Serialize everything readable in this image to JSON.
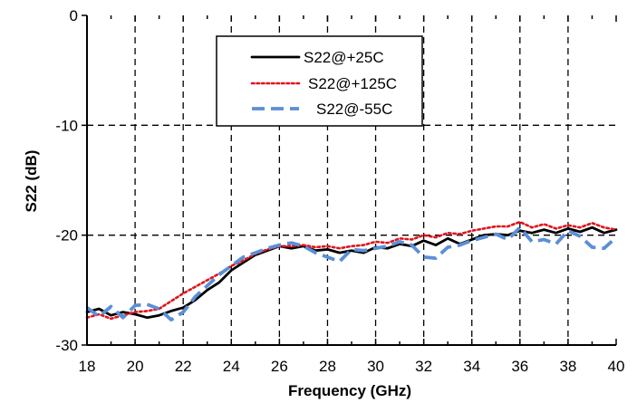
{
  "chart_data": {
    "type": "line",
    "xlabel": "Frequency (GHz)",
    "ylabel": "S22 (dB)",
    "xlim": [
      18,
      40
    ],
    "ylim": [
      -30,
      0
    ],
    "xticks": [
      18,
      20,
      22,
      24,
      26,
      28,
      30,
      32,
      34,
      36,
      38,
      40
    ],
    "yticks": [
      0,
      -10,
      -20,
      -30
    ],
    "grid": "dashed at x ticks and y = -10, -20",
    "legend_position": "top-center",
    "series": [
      {
        "name": "S22@+25C",
        "color": "#000000",
        "style": "solid",
        "x": [
          18,
          18.5,
          19,
          19.5,
          20,
          20.5,
          21,
          21.5,
          22,
          22.5,
          23,
          23.5,
          24,
          24.5,
          25,
          25.5,
          26,
          26.5,
          27,
          27.5,
          28,
          28.5,
          29,
          29.5,
          30,
          30.5,
          31,
          31.5,
          32,
          32.5,
          33,
          33.5,
          34,
          34.5,
          35,
          35.5,
          36,
          36.5,
          37,
          37.5,
          38,
          38.5,
          39,
          39.5,
          40
        ],
        "values": [
          -27.0,
          -26.7,
          -27.3,
          -27.0,
          -27.2,
          -27.5,
          -27.3,
          -26.9,
          -26.6,
          -25.9,
          -25.0,
          -24.3,
          -23.2,
          -22.5,
          -21.8,
          -21.4,
          -21.0,
          -21.2,
          -21.0,
          -21.4,
          -21.3,
          -21.6,
          -21.4,
          -21.6,
          -21.1,
          -21.2,
          -20.8,
          -21.0,
          -20.5,
          -20.9,
          -20.3,
          -20.8,
          -20.4,
          -20.0,
          -19.9,
          -20.0,
          -19.6,
          -19.8,
          -19.5,
          -19.8,
          -19.4,
          -19.7,
          -19.3,
          -19.8,
          -19.5
        ]
      },
      {
        "name": "S22@+125C",
        "color": "#e0141c",
        "style": "dotted",
        "x": [
          18,
          18.5,
          19,
          19.5,
          20,
          20.5,
          21,
          21.5,
          22,
          22.5,
          23,
          23.5,
          24,
          24.5,
          25,
          25.5,
          26,
          26.5,
          27,
          27.5,
          28,
          28.5,
          29,
          29.5,
          30,
          30.5,
          31,
          31.5,
          32,
          32.5,
          33,
          33.5,
          34,
          34.5,
          35,
          35.5,
          36,
          36.5,
          37,
          37.5,
          38,
          38.5,
          39,
          39.5,
          40
        ],
        "values": [
          -27.5,
          -27.2,
          -27.6,
          -27.3,
          -27.0,
          -26.9,
          -26.7,
          -26.0,
          -25.3,
          -24.7,
          -24.1,
          -23.5,
          -22.8,
          -22.3,
          -21.7,
          -21.3,
          -21.0,
          -21.0,
          -20.9,
          -21.1,
          -21.0,
          -21.2,
          -21.0,
          -20.9,
          -20.6,
          -20.7,
          -20.3,
          -20.4,
          -20.0,
          -20.2,
          -19.8,
          -19.9,
          -19.6,
          -19.4,
          -19.2,
          -19.2,
          -18.8,
          -19.3,
          -19.0,
          -19.4,
          -19.1,
          -19.3,
          -18.9,
          -19.3,
          -19.5
        ]
      },
      {
        "name": "S22@-55C",
        "color": "#5b8fd6",
        "style": "dashed",
        "x": [
          18,
          18.5,
          19,
          19.5,
          20,
          20.5,
          21,
          21.5,
          22,
          22.5,
          23,
          23.5,
          24,
          24.5,
          25,
          25.5,
          26,
          26.5,
          27,
          27.5,
          28,
          28.5,
          29,
          29.5,
          30,
          30.5,
          31,
          31.5,
          32,
          32.5,
          33,
          33.5,
          34,
          34.5,
          35,
          35.5,
          36,
          36.5,
          37,
          37.5,
          38,
          38.5,
          39,
          39.5,
          40
        ],
        "values": [
          -26.6,
          -27.4,
          -26.5,
          -27.5,
          -26.4,
          -26.3,
          -26.7,
          -27.7,
          -27.0,
          -25.6,
          -24.6,
          -23.6,
          -22.8,
          -22.0,
          -21.6,
          -21.2,
          -20.9,
          -20.7,
          -21.0,
          -21.6,
          -22.0,
          -22.4,
          -21.3,
          -21.4,
          -21.2,
          -21.0,
          -20.6,
          -20.9,
          -22.0,
          -22.1,
          -21.1,
          -20.9,
          -20.5,
          -20.2,
          -19.9,
          -20.4,
          -19.3,
          -20.6,
          -20.4,
          -20.8,
          -19.6,
          -20.1,
          -21.1,
          -21.2,
          -20.2
        ]
      }
    ]
  }
}
